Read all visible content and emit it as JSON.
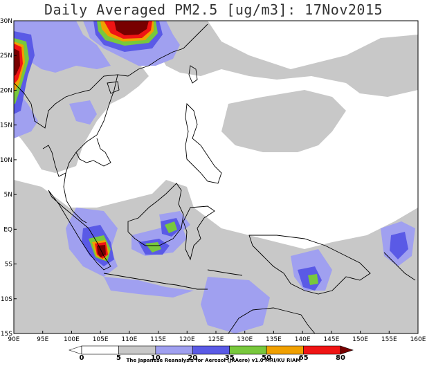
{
  "title": "Daily Averaged PM2.5 [ug/m3]: 17Nov2015",
  "credit": "The Japanese Reanalysis for Aerosol (JRAero) v1.0 MRI/KU RIAM",
  "map": {
    "lon_range": [
      90,
      160
    ],
    "lat_range": [
      -15,
      30
    ],
    "lon_ticks": [
      "90E",
      "95E",
      "100E",
      "105E",
      "110E",
      "115E",
      "120E",
      "125E",
      "130E",
      "135E",
      "140E",
      "145E",
      "150E",
      "155E",
      "160E"
    ],
    "lat_ticks": [
      "30N",
      "25N",
      "20N",
      "15N",
      "10N",
      "5N",
      "EQ",
      "5S",
      "10S",
      "15S"
    ]
  },
  "colorbar": {
    "levels": [
      "0",
      "5",
      "10",
      "20",
      "35",
      "50",
      "65",
      "80"
    ],
    "colors": {
      "c0": "#ffffff",
      "c5": "#ffffff",
      "c10": "#c8c8c8",
      "c20": "#a0a0f0",
      "c35": "#5a5ae6",
      "c50": "#78c83c",
      "c65": "#f0a000",
      "c80": "#f01414",
      "cmax": "#780000"
    }
  },
  "colors": {
    "coastline": "#000000",
    "frame": "#000000"
  }
}
